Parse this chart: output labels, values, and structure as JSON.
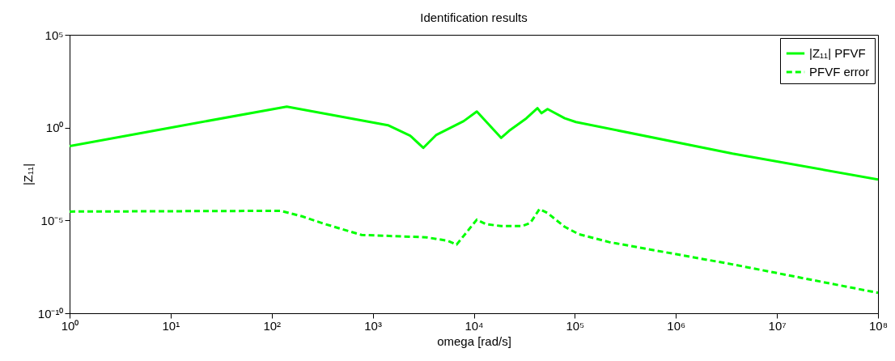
{
  "chart_data": {
    "type": "line",
    "title": "Identification results",
    "xlabel": "omega [rad/s]",
    "ylabel": "|Z₁₁|",
    "log": "xy",
    "grid": false,
    "legend": "top right",
    "marker": "none",
    "xlim": [
      1,
      100000000
    ],
    "ylim": [
      1e-10,
      100000
    ],
    "xticks": [
      {
        "value": 1,
        "label": "10⁰"
      },
      {
        "value": 10,
        "label": "10¹"
      },
      {
        "value": 100,
        "label": "10²"
      },
      {
        "value": 1000,
        "label": "10³"
      },
      {
        "value": 10000,
        "label": "10⁴"
      },
      {
        "value": 100000,
        "label": "10⁵"
      },
      {
        "value": 1000000,
        "label": "10⁶"
      },
      {
        "value": 10000000,
        "label": "10⁷"
      },
      {
        "value": 100000000,
        "label": "10⁸"
      }
    ],
    "yticks": [
      {
        "value": 1e-10,
        "label": "10⁻¹⁰"
      },
      {
        "value": 1e-05,
        "label": "10⁻⁵"
      },
      {
        "value": 1,
        "label": "10⁰"
      },
      {
        "value": 100000,
        "label": "10⁵"
      }
    ],
    "series": [
      {
        "name": "|Z₁₁| PFVF",
        "color": "#00ff00",
        "line_style": "solid",
        "x": [
          1,
          10,
          141,
          1413,
          2344,
          3162,
          4266,
          7943,
          10715,
          18621,
          22387,
          33113,
          42658,
          46774,
          53703,
          79433,
          102329,
          3630781,
          100000000
        ],
        "values": [
          0.1,
          1.0,
          13.5,
          1.35,
          0.37,
          0.081,
          0.41,
          2.24,
          7.4,
          0.28,
          0.68,
          3.16,
          11.2,
          6.0,
          10,
          3.2,
          2.0,
          0.04,
          0.0016
        ]
      },
      {
        "name": "PFVF error",
        "color": "#00ff00",
        "line_style": "dashed",
        "x": [
          1,
          123,
          200,
          324,
          776,
          3388,
          5495,
          6761,
          10715,
          13183,
          18621,
          30200,
          36308,
          44668,
          53703,
          79433,
          109648,
          218776,
          3630781,
          100000000
        ],
        "values": [
          3e-05,
          3.3e-05,
          1.66e-05,
          6.8e-06,
          1.66e-06,
          1.23e-06,
          8.1e-07,
          5e-07,
          1.1e-05,
          6.3e-06,
          5e-06,
          5e-06,
          7.4e-06,
          4.1e-05,
          2.5e-05,
          4.5e-06,
          1.8e-06,
          6.8e-07,
          4.3e-08,
          1.26e-09
        ]
      }
    ]
  }
}
